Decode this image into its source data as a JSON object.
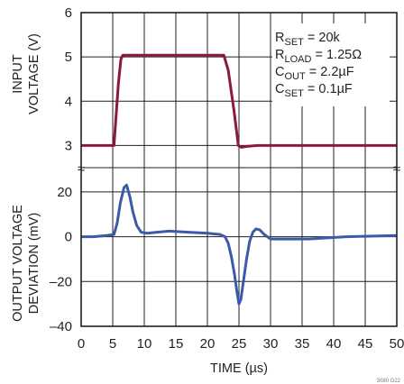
{
  "chart_data": {
    "type": "line",
    "xlabel": "TIME (µs)",
    "x_ticks": [
      "0",
      "5",
      "10",
      "15",
      "20",
      "25",
      "30",
      "35",
      "40",
      "45",
      "50"
    ],
    "xlim": [
      0,
      50
    ],
    "grid": true,
    "code": "3080 G22",
    "break_mark": "≈",
    "top_panel": {
      "ylabel_lines": [
        "INPUT",
        "VOLTAGE (V)"
      ],
      "ylim": [
        2.5,
        6
      ],
      "y_ticks": [
        "3",
        "4",
        "5",
        "6"
      ],
      "series": [
        {
          "color": "#8b1a3a",
          "x": [
            0,
            4.0,
            5.2,
            5.9,
            6.3,
            6.6,
            8,
            12,
            16,
            20,
            22.6,
            23.3,
            24.2,
            24.9,
            25.4,
            26.2,
            28,
            32,
            40,
            50
          ],
          "y": [
            3.0,
            3.0,
            3.0,
            4.4,
            4.95,
            5.04,
            5.04,
            5.04,
            5.04,
            5.04,
            5.04,
            4.7,
            3.8,
            3.0,
            2.96,
            2.98,
            3.0,
            3.0,
            3.0,
            3.0
          ]
        }
      ],
      "annotations": [
        {
          "main": "R",
          "sub": "SET",
          "rest": " = 20k"
        },
        {
          "main": "R",
          "sub": "LOAD",
          "rest": " = 1.25Ω"
        },
        {
          "main": "C",
          "sub": "OUT",
          "rest": " = 2.2µF"
        },
        {
          "main": "C",
          "sub": "SET",
          "rest": " = 0.1µF"
        }
      ]
    },
    "bottom_panel": {
      "ylabel_lines": [
        "OUTPUT VOLTAGE",
        "DEVIATION (mV)"
      ],
      "ylim": [
        -40,
        30
      ],
      "y_ticks": [
        "20",
        "0",
        "–20",
        "–40"
      ],
      "y_tick_values": [
        20,
        0,
        -20,
        -40
      ],
      "series": [
        {
          "color": "#3b5ba9",
          "x": [
            0,
            2,
            4,
            5.2,
            5.7,
            6.2,
            6.8,
            7.2,
            7.7,
            8.2,
            8.8,
            9.5,
            10.5,
            12,
            14,
            17,
            20,
            22,
            22.8,
            23.3,
            23.8,
            24.3,
            24.7,
            25.0,
            25.3,
            25.7,
            26.2,
            26.7,
            27.2,
            27.7,
            28.3,
            29.0,
            30,
            32,
            36,
            42,
            50
          ],
          "y": [
            0,
            0,
            0.5,
            1,
            6,
            15,
            22,
            23,
            18,
            11,
            5,
            2,
            1.5,
            2,
            2.5,
            2,
            1.5,
            1,
            0,
            -3,
            -9,
            -17,
            -25,
            -30,
            -28,
            -20,
            -10,
            -2,
            2,
            3.5,
            3,
            1,
            -1,
            -1,
            -1,
            0,
            0.5
          ]
        }
      ]
    }
  }
}
